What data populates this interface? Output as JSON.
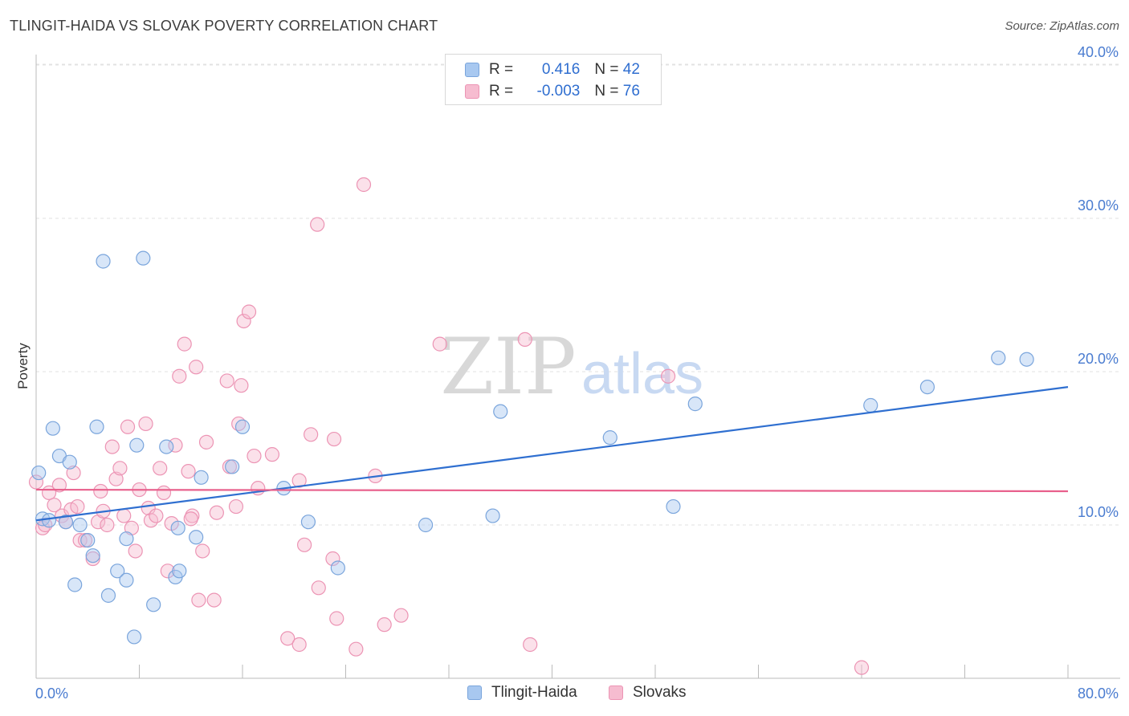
{
  "title": "TLINGIT-HAIDA VS SLOVAK POVERTY CORRELATION CHART",
  "source": "Source: ZipAtlas.com",
  "watermark": {
    "part1": "ZIP",
    "part2": "atlas"
  },
  "colors": {
    "blue_fill": "#a8c8f0",
    "blue_stroke": "#7aa5dc",
    "blue_line": "#2f6fd0",
    "pink_fill": "#f6bcd0",
    "pink_stroke": "#ec94b4",
    "pink_line": "#e8608c",
    "tick_text": "#4a7cd0"
  },
  "legend": {
    "rows": [
      {
        "r_label": "R = ",
        "r_value": "0.416",
        "n_label": "N = ",
        "n_value": "42"
      },
      {
        "r_label": "R = ",
        "r_value": "-0.003",
        "n_label": "N = ",
        "n_value": "76"
      }
    ]
  },
  "bottom_legend": {
    "series1": "Tlingit-Haida",
    "series2": "Slovaks"
  },
  "chart_data": {
    "type": "scatter",
    "xlabel": "",
    "ylabel": "Poverty",
    "xlim": [
      0,
      80
    ],
    "ylim": [
      0,
      42
    ],
    "x_tick_labels": {
      "left": "0.0%",
      "right": "80.0%"
    },
    "y_ticks": [
      10,
      20,
      30,
      40
    ],
    "y_tick_labels": [
      "10.0%",
      "20.0%",
      "30.0%",
      "40.0%"
    ],
    "grid": true,
    "legend_position": "top-center",
    "series": [
      {
        "name": "Tlingit-Haida",
        "color": "blue",
        "trend": {
          "x": [
            0,
            80
          ],
          "y": [
            10.3,
            19.0
          ]
        },
        "points": [
          [
            0.2,
            13.4
          ],
          [
            0.5,
            10.4
          ],
          [
            1.0,
            10.3
          ],
          [
            1.3,
            16.3
          ],
          [
            1.8,
            14.5
          ],
          [
            2.6,
            14.1
          ],
          [
            2.3,
            10.2
          ],
          [
            3.0,
            6.1
          ],
          [
            3.4,
            10.0
          ],
          [
            4.0,
            9.0
          ],
          [
            4.4,
            8.0
          ],
          [
            4.7,
            16.4
          ],
          [
            5.2,
            27.2
          ],
          [
            5.6,
            5.4
          ],
          [
            6.3,
            7.0
          ],
          [
            7.0,
            6.4
          ],
          [
            7.0,
            9.1
          ],
          [
            7.6,
            2.7
          ],
          [
            7.8,
            15.2
          ],
          [
            8.3,
            27.4
          ],
          [
            9.1,
            4.8
          ],
          [
            10.1,
            15.1
          ],
          [
            11.0,
            9.8
          ],
          [
            10.8,
            6.6
          ],
          [
            11.1,
            7.0
          ],
          [
            12.4,
            9.2
          ],
          [
            12.8,
            13.1
          ],
          [
            15.2,
            13.8
          ],
          [
            16.0,
            16.4
          ],
          [
            19.2,
            12.4
          ],
          [
            21.1,
            10.2
          ],
          [
            23.4,
            7.2
          ],
          [
            30.2,
            10.0
          ],
          [
            35.4,
            10.6
          ],
          [
            36.0,
            17.4
          ],
          [
            44.5,
            15.7
          ],
          [
            49.4,
            11.2
          ],
          [
            51.1,
            17.9
          ],
          [
            64.7,
            17.8
          ],
          [
            69.1,
            19.0
          ],
          [
            74.6,
            20.9
          ],
          [
            76.8,
            20.8
          ]
        ]
      },
      {
        "name": "Slovaks",
        "color": "pink",
        "trend": {
          "x": [
            0,
            80
          ],
          "y": [
            12.3,
            12.2
          ]
        },
        "points": [
          [
            0.0,
            12.8
          ],
          [
            0.5,
            9.8
          ],
          [
            0.7,
            10.0
          ],
          [
            1.0,
            12.1
          ],
          [
            1.4,
            11.3
          ],
          [
            1.8,
            12.6
          ],
          [
            2.0,
            10.6
          ],
          [
            2.3,
            10.2
          ],
          [
            2.7,
            11.0
          ],
          [
            2.9,
            13.4
          ],
          [
            3.2,
            11.2
          ],
          [
            3.4,
            9.0
          ],
          [
            3.8,
            9.0
          ],
          [
            4.4,
            7.8
          ],
          [
            4.8,
            10.2
          ],
          [
            5.0,
            12.2
          ],
          [
            5.2,
            10.9
          ],
          [
            5.5,
            10.0
          ],
          [
            5.9,
            15.1
          ],
          [
            6.2,
            13.0
          ],
          [
            6.5,
            13.7
          ],
          [
            6.8,
            10.6
          ],
          [
            7.1,
            16.4
          ],
          [
            7.4,
            9.8
          ],
          [
            7.7,
            8.3
          ],
          [
            8.0,
            12.3
          ],
          [
            8.5,
            16.6
          ],
          [
            8.7,
            11.1
          ],
          [
            8.9,
            10.3
          ],
          [
            9.3,
            10.6
          ],
          [
            9.6,
            13.7
          ],
          [
            9.9,
            12.1
          ],
          [
            10.2,
            7.0
          ],
          [
            10.5,
            10.1
          ],
          [
            10.8,
            15.2
          ],
          [
            11.1,
            19.7
          ],
          [
            11.5,
            21.8
          ],
          [
            11.8,
            13.5
          ],
          [
            12.1,
            10.6
          ],
          [
            12.4,
            20.3
          ],
          [
            12.6,
            5.1
          ],
          [
            12.9,
            8.3
          ],
          [
            13.2,
            15.4
          ],
          [
            13.8,
            5.1
          ],
          [
            14.0,
            10.8
          ],
          [
            14.8,
            19.4
          ],
          [
            15.0,
            13.8
          ],
          [
            15.5,
            11.2
          ],
          [
            15.7,
            16.6
          ],
          [
            15.9,
            19.1
          ],
          [
            16.1,
            23.3
          ],
          [
            16.5,
            23.9
          ],
          [
            16.9,
            14.5
          ],
          [
            17.2,
            12.4
          ],
          [
            18.3,
            14.6
          ],
          [
            19.5,
            2.6
          ],
          [
            20.4,
            2.2
          ],
          [
            20.4,
            12.9
          ],
          [
            20.8,
            8.7
          ],
          [
            21.3,
            15.9
          ],
          [
            21.8,
            29.6
          ],
          [
            21.9,
            5.9
          ],
          [
            23.1,
            15.6
          ],
          [
            23.0,
            7.8
          ],
          [
            23.3,
            3.9
          ],
          [
            24.8,
            1.9
          ],
          [
            25.4,
            32.2
          ],
          [
            26.3,
            13.2
          ],
          [
            27.0,
            3.5
          ],
          [
            28.3,
            4.1
          ],
          [
            31.3,
            21.8
          ],
          [
            37.9,
            22.1
          ],
          [
            38.3,
            2.2
          ],
          [
            49.0,
            19.7
          ],
          [
            64.0,
            0.7
          ],
          [
            12.0,
            10.4
          ]
        ]
      }
    ]
  }
}
